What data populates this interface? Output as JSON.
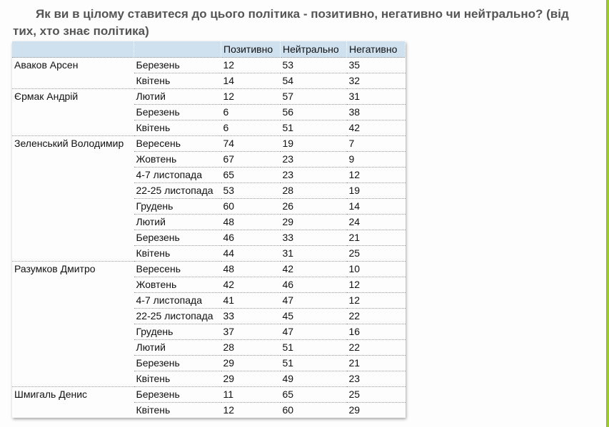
{
  "title": "Як ви в цілому ставитеся до цього політика - позитивно, негативно чи нейтрально? (від тих, хто знає політика)",
  "headers": [
    "",
    "",
    "Позитивно",
    "Нейтрально",
    "Негативно"
  ],
  "groups": [
    {
      "name": "Аваков Арсен",
      "rows": [
        [
          "Березень",
          12,
          53,
          35
        ],
        [
          "Квітень",
          14,
          54,
          32
        ]
      ]
    },
    {
      "name": "Єрмак Андрій",
      "rows": [
        [
          "Лютий",
          12,
          57,
          31
        ],
        [
          "Березень",
          6,
          56,
          38
        ],
        [
          "Квітень",
          6,
          51,
          42
        ]
      ]
    },
    {
      "name": "Зеленський Володимир",
      "rows": [
        [
          "Вересень",
          74,
          19,
          7
        ],
        [
          "Жовтень",
          67,
          23,
          9
        ],
        [
          "4-7 листопада",
          65,
          23,
          12
        ],
        [
          "22-25 листопада",
          53,
          28,
          19
        ],
        [
          "Грудень",
          60,
          26,
          14
        ],
        [
          "Лютий",
          48,
          29,
          24
        ],
        [
          "Березень",
          46,
          33,
          21
        ],
        [
          "Квітень",
          44,
          31,
          25
        ]
      ]
    },
    {
      "name": "Разумков Дмитро",
      "rows": [
        [
          "Вересень",
          48,
          42,
          10
        ],
        [
          "Жовтень",
          42,
          46,
          12
        ],
        [
          "4-7 листопада",
          41,
          47,
          12
        ],
        [
          "22-25 листопада",
          33,
          45,
          22
        ],
        [
          "Грудень",
          37,
          47,
          16
        ],
        [
          "Лютий",
          28,
          51,
          22
        ],
        [
          "Березень",
          29,
          51,
          21
        ],
        [
          "Квітень",
          29,
          49,
          23
        ]
      ]
    },
    {
      "name": "Шмигаль Денис",
      "rows": [
        [
          "Березень",
          11,
          65,
          25
        ],
        [
          "Квітень",
          12,
          60,
          29
        ]
      ]
    }
  ]
}
